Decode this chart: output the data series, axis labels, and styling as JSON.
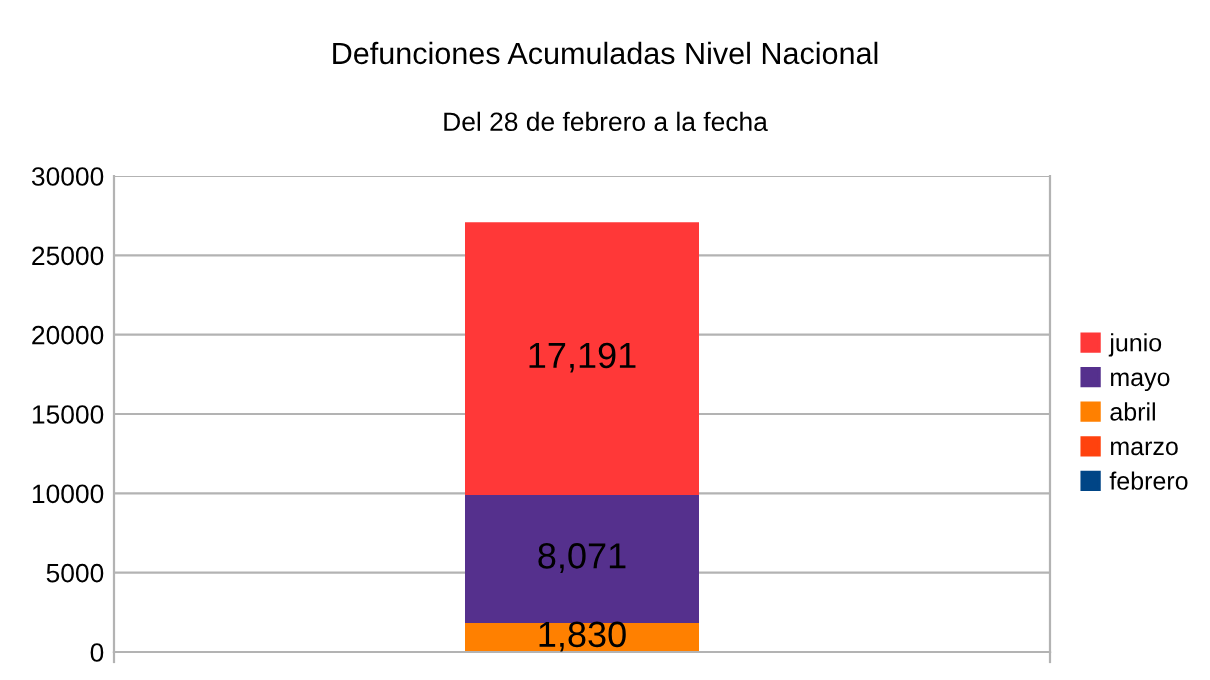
{
  "chart_data": {
    "type": "bar",
    "stacked": true,
    "title": "Defunciones Acumuladas Nivel Nacional",
    "subtitle": "Del 28 de febrero a la fecha",
    "categories": [
      null
    ],
    "series": [
      {
        "name": "febrero",
        "color": "#004586",
        "values": [
          0
        ],
        "value_labels": [
          null
        ]
      },
      {
        "name": "marzo",
        "color": "#ff420e",
        "values": [
          0
        ],
        "value_labels": [
          null
        ]
      },
      {
        "name": "abril",
        "color": "#ff8000",
        "values": [
          1830
        ],
        "value_labels": [
          "1,830"
        ]
      },
      {
        "name": "mayo",
        "color": "#55308d",
        "values": [
          8071
        ],
        "value_labels": [
          "8,071"
        ]
      },
      {
        "name": "junio",
        "color": "#ff3838",
        "values": [
          17191
        ],
        "value_labels": [
          "17,191"
        ]
      }
    ],
    "ylim": [
      0,
      30000
    ],
    "yticks": [
      0,
      5000,
      10000,
      15000,
      20000,
      25000,
      30000
    ],
    "grid": "y",
    "legend": "right"
  }
}
